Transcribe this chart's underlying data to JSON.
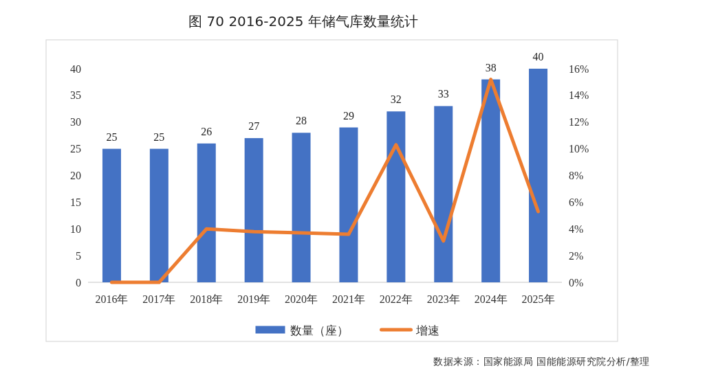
{
  "chart_data": {
    "type": "bar",
    "title": "图 70 2016-2025 年储气库数量统计",
    "categories": [
      "2016年",
      "2017年",
      "2018年",
      "2019年",
      "2020年",
      "2021年",
      "2022年",
      "2023年",
      "2024年",
      "2025年"
    ],
    "series": [
      {
        "name": "数量（座）",
        "color": "#4472c4",
        "values": [
          25,
          25,
          26,
          27,
          28,
          29,
          32,
          33,
          38,
          40
        ],
        "value_labels": [
          "25",
          "25",
          "26",
          "27",
          "28",
          "29",
          "32",
          "33",
          "38",
          "40"
        ]
      },
      {
        "name": "增速",
        "type": "line",
        "axis": "y2",
        "color": "#ed7d31",
        "values": [
          0,
          0,
          4.0,
          3.8,
          3.7,
          3.6,
          10.3,
          3.1,
          15.2,
          5.3
        ]
      }
    ],
    "ylim": [
      0,
      40
    ],
    "yticks": [
      0,
      5,
      10,
      15,
      20,
      25,
      30,
      35,
      40
    ],
    "y2lim": [
      0,
      16
    ],
    "y2ticks": [
      {
        "value": 0,
        "label": "0%"
      },
      {
        "value": 2,
        "label": "2%"
      },
      {
        "value": 4,
        "label": "4%"
      },
      {
        "value": 6,
        "label": "6%"
      },
      {
        "value": 8,
        "label": "8%"
      },
      {
        "value": 10,
        "label": "10%"
      },
      {
        "value": 12,
        "label": "12%"
      },
      {
        "value": 14,
        "label": "14%"
      },
      {
        "value": 16,
        "label": "16%"
      }
    ],
    "legend": "bottom",
    "annotations": [
      "数据来源：国家能源局 国能能源研究院分析/整理"
    ]
  }
}
